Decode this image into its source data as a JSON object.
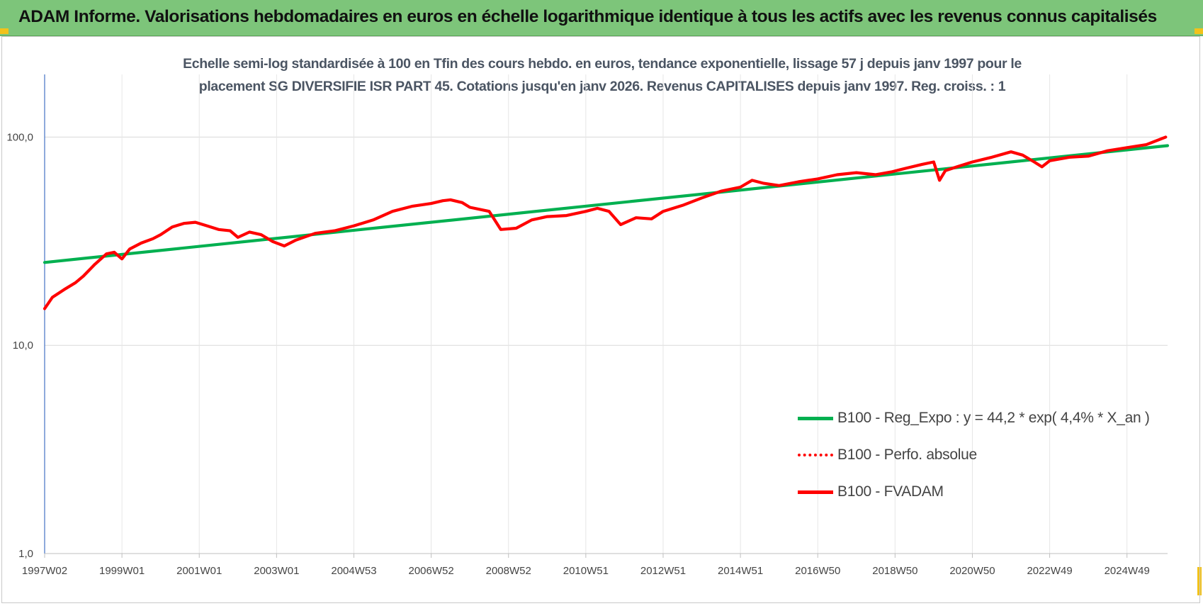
{
  "banner": {
    "title": "ADAM Informe. Valorisations hebdomadaires en euros en échelle logarithmique identique à tous les actifs avec les revenus connus capitalisés"
  },
  "colors": {
    "banner_bg": "#7dc57a",
    "trend": "#00b050",
    "fvadam": "#ff0000",
    "perfo": "#ff0000",
    "grid": "#d9d9d9",
    "corner_marks": "#f2c21a"
  },
  "chart_data": {
    "type": "line",
    "title_lines": [
      "Echelle semi-log standardisée à 100 en Tfin des cours hebdo. en euros, tendance exponentielle, lissage 57 j depuis janv 1997 pour le",
      "placement SG DIVERSIFIE ISR PART 45. Cotations jusqu'en janv 2026. Revenus CAPITALISES depuis janv 1997. Reg. croiss. : 1"
    ],
    "y_scale": "log",
    "ylim": [
      1,
      200
    ],
    "y_ticks": [
      {
        "value": 1,
        "label": "1,0"
      },
      {
        "value": 10,
        "label": "10,0"
      },
      {
        "value": 100,
        "label": "100,0"
      }
    ],
    "xlim": [
      1997.0,
      2026.05
    ],
    "x_ticks": [
      {
        "value": 1997.0,
        "label": "1997W02"
      },
      {
        "value": 1999.0,
        "label": "1999W01"
      },
      {
        "value": 2001.0,
        "label": "2001W01"
      },
      {
        "value": 2003.0,
        "label": "2003W01"
      },
      {
        "value": 2005.0,
        "label": "2004W53"
      },
      {
        "value": 2007.0,
        "label": "2006W52"
      },
      {
        "value": 2009.0,
        "label": "2008W52"
      },
      {
        "value": 2011.0,
        "label": "2010W51"
      },
      {
        "value": 2013.0,
        "label": "2012W51"
      },
      {
        "value": 2015.0,
        "label": "2014W51"
      },
      {
        "value": 2017.0,
        "label": "2016W50"
      },
      {
        "value": 2019.0,
        "label": "2018W50"
      },
      {
        "value": 2021.0,
        "label": "2020W50"
      },
      {
        "value": 2023.0,
        "label": "2022W49"
      },
      {
        "value": 2025.0,
        "label": "2024W49"
      }
    ],
    "grid": true,
    "legend_position": "bottom-right",
    "series": [
      {
        "name": "B100 - Reg_Expo : y = 44,2 * exp( 4,4% *  X_an )",
        "style": "solid-thick",
        "x": [
          1997.0,
          2026.05
        ],
        "y": [
          25.0,
          91.0
        ]
      },
      {
        "name": "B100 - Perfo. absolue",
        "style": "dotted",
        "x": [],
        "y": []
      },
      {
        "name": "B100 - FVADAM",
        "style": "solid-thick",
        "x": [
          1997.0,
          1997.2,
          1997.5,
          1997.8,
          1998.0,
          1998.3,
          1998.6,
          1998.8,
          1999.0,
          1999.2,
          1999.5,
          1999.8,
          2000.0,
          2000.3,
          2000.6,
          2000.9,
          2001.2,
          2001.5,
          2001.8,
          2002.0,
          2002.3,
          2002.6,
          2002.9,
          2003.2,
          2003.5,
          2004.0,
          2004.5,
          2005.0,
          2005.5,
          2006.0,
          2006.5,
          2007.0,
          2007.3,
          2007.5,
          2007.8,
          2008.0,
          2008.5,
          2008.8,
          2009.2,
          2009.6,
          2010.0,
          2010.5,
          2011.0,
          2011.3,
          2011.6,
          2011.9,
          2012.3,
          2012.7,
          2013.0,
          2013.5,
          2014.0,
          2014.5,
          2015.0,
          2015.3,
          2015.6,
          2016.0,
          2016.5,
          2017.0,
          2017.5,
          2018.0,
          2018.5,
          2018.9,
          2019.3,
          2019.7,
          2020.0,
          2020.15,
          2020.3,
          2020.6,
          2021.0,
          2021.5,
          2022.0,
          2022.3,
          2022.6,
          2022.8,
          2023.0,
          2023.5,
          2024.0,
          2024.5,
          2025.0,
          2025.5,
          2026.0
        ],
        "y": [
          15.0,
          17.0,
          18.5,
          20.0,
          21.5,
          24.5,
          27.5,
          28.0,
          26.0,
          29.0,
          31.0,
          32.5,
          34.0,
          37.0,
          38.5,
          39.0,
          37.5,
          36.0,
          35.5,
          33.0,
          35.0,
          34.0,
          31.5,
          30.0,
          32.0,
          34.5,
          35.5,
          37.5,
          40.0,
          44.0,
          46.5,
          48.0,
          49.5,
          50.0,
          48.5,
          46.0,
          44.0,
          36.0,
          36.5,
          40.0,
          41.5,
          42.0,
          44.0,
          45.5,
          44.0,
          38.0,
          41.0,
          40.5,
          44.0,
          47.0,
          51.0,
          55.0,
          57.5,
          62.0,
          60.0,
          58.5,
          61.0,
          63.0,
          66.0,
          67.5,
          66.0,
          68.0,
          71.0,
          74.0,
          76.0,
          62.0,
          69.0,
          72.0,
          76.0,
          80.0,
          85.0,
          82.0,
          76.0,
          72.0,
          77.0,
          80.0,
          81.0,
          86.0,
          89.0,
          92.0,
          100.0
        ]
      }
    ]
  }
}
